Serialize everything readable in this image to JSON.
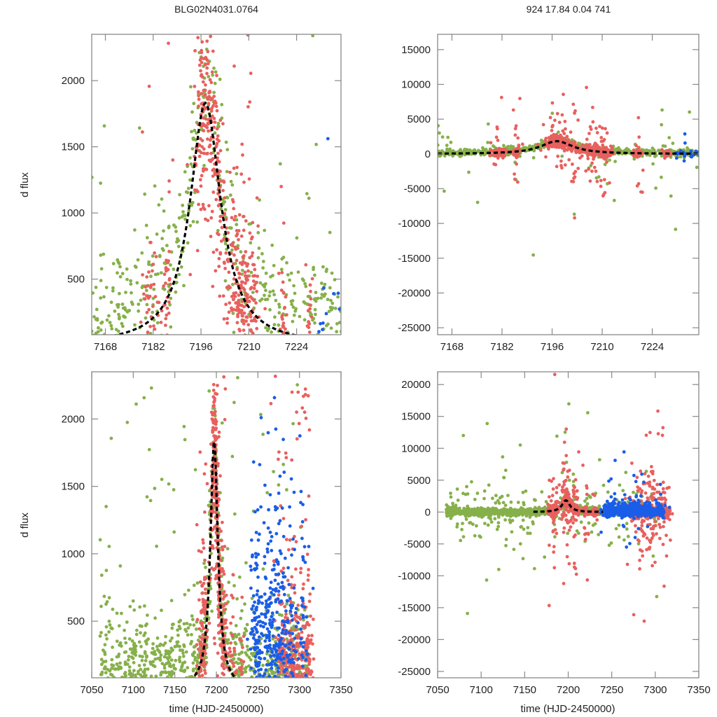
{
  "titles": {
    "left": "BLG02N4031.0764",
    "right": "924  17.84  0.04  741"
  },
  "colors": {
    "green": "#86b04a",
    "red": "#e8605e",
    "blue": "#1a5de8",
    "model": "#000000",
    "frame": "#888888"
  },
  "chart_data": [
    {
      "id": "top-left",
      "type": "scatter",
      "title": "BLG02N4031.0764",
      "xlabel": "",
      "ylabel": "d flux",
      "xlim": [
        7164,
        7237
      ],
      "ylim": [
        80,
        2350
      ],
      "xticks": [
        7168,
        7182,
        7196,
        7210,
        7224
      ],
      "yticks": [
        500,
        1000,
        1500,
        2000
      ],
      "model": {
        "type": "microlensing_peak",
        "t0": 7197.3,
        "peak": 1830,
        "width": 5.2,
        "style": "dashed"
      },
      "series": [
        {
          "name": "green",
          "description": "scattered photometry across full range, concentrated near peak"
        },
        {
          "name": "red",
          "description": "dense clusters at ~7181, ~7196-7200, ~7205-7212, ~7221"
        },
        {
          "name": "blue",
          "description": "few points near 7236"
        }
      ]
    },
    {
      "id": "top-right",
      "type": "scatter",
      "title": "924  17.84  0.04  741",
      "xlabel": "",
      "ylabel": "",
      "xlim": [
        7164,
        7237
      ],
      "ylim": [
        -26000,
        17200
      ],
      "xticks": [
        7168,
        7182,
        7196,
        7210,
        7224
      ],
      "yticks": [
        -25000,
        -20000,
        -15000,
        -10000,
        -5000,
        0,
        5000,
        10000,
        15000
      ],
      "model": {
        "type": "microlensing_peak",
        "t0": 7197.3,
        "peak": 1830,
        "width": 5.2,
        "style": "dashed"
      },
      "series": [
        {
          "name": "green"
        },
        {
          "name": "red"
        },
        {
          "name": "blue"
        }
      ]
    },
    {
      "id": "bottom-left",
      "type": "scatter",
      "title": "",
      "xlabel": "time (HJD-2450000)",
      "ylabel": "d flux",
      "xlim": [
        7050,
        7350
      ],
      "ylim": [
        80,
        2350
      ],
      "xticks": [
        7050,
        7100,
        7150,
        7200,
        7250,
        7300,
        7350
      ],
      "yticks": [
        500,
        1000,
        1500,
        2000
      ],
      "model": {
        "type": "microlensing_peak",
        "t0": 7197.3,
        "peak": 1830,
        "width": 5.2,
        "style": "dashed"
      },
      "series": [
        {
          "name": "green",
          "range": [
            7060,
            7310
          ]
        },
        {
          "name": "red",
          "range": [
            7180,
            7312
          ]
        },
        {
          "name": "blue",
          "range": [
            7240,
            7310
          ]
        }
      ]
    },
    {
      "id": "bottom-right",
      "type": "scatter",
      "title": "",
      "xlabel": "time (HJD-2450000)",
      "ylabel": "",
      "xlim": [
        7050,
        7350
      ],
      "ylim": [
        -26000,
        22000
      ],
      "xticks": [
        7050,
        7100,
        7150,
        7200,
        7250,
        7300,
        7350
      ],
      "yticks": [
        -25000,
        -20000,
        -15000,
        -10000,
        -5000,
        0,
        5000,
        10000,
        15000,
        20000
      ],
      "model": {
        "type": "microlensing_peak",
        "t0": 7197.3,
        "peak": 1830,
        "width": 5.2,
        "style": "dashed"
      },
      "series": [
        {
          "name": "green",
          "range": [
            7060,
            7310
          ]
        },
        {
          "name": "red",
          "range": [
            7180,
            7315
          ]
        },
        {
          "name": "blue",
          "range": [
            7240,
            7310
          ]
        }
      ]
    }
  ]
}
